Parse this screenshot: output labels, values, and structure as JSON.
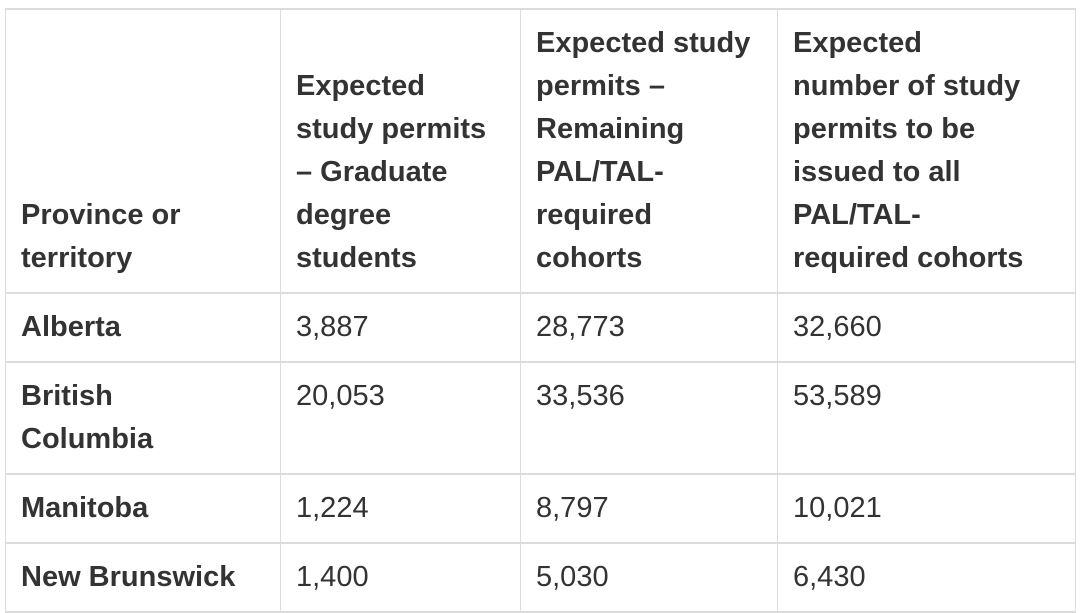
{
  "colors": {
    "text": "#333333",
    "border": "#dcdcdc",
    "background": "#ffffff"
  },
  "chart_data": {
    "type": "table",
    "columns": [
      "Province or territory",
      "Expected study permits – Graduate degree students",
      "Expected study permits – Remaining PAL/TAL-required cohorts",
      "Expected number of study permits to be issued to all PAL/TAL-required cohorts"
    ],
    "rows": [
      [
        "Alberta",
        "3,887",
        "28,773",
        "32,660"
      ],
      [
        "British Columbia",
        "20,053",
        "33,536",
        "53,589"
      ],
      [
        "Manitoba",
        "1,224",
        "8,797",
        "10,021"
      ],
      [
        "New Brunswick",
        "1,400",
        "5,030",
        "6,430"
      ]
    ],
    "rows_numeric": [
      {
        "province": "Alberta",
        "graduate_degree_students": 3887,
        "remaining_pal_tal_cohorts": 28773,
        "all_pal_tal_cohorts": 32660
      },
      {
        "province": "British Columbia",
        "graduate_degree_students": 20053,
        "remaining_pal_tal_cohorts": 33536,
        "all_pal_tal_cohorts": 53589
      },
      {
        "province": "Manitoba",
        "graduate_degree_students": 1224,
        "remaining_pal_tal_cohorts": 8797,
        "all_pal_tal_cohorts": 10021
      },
      {
        "province": "New Brunswick",
        "graduate_degree_students": 1400,
        "remaining_pal_tal_cohorts": 5030,
        "all_pal_tal_cohorts": 6430
      }
    ]
  }
}
